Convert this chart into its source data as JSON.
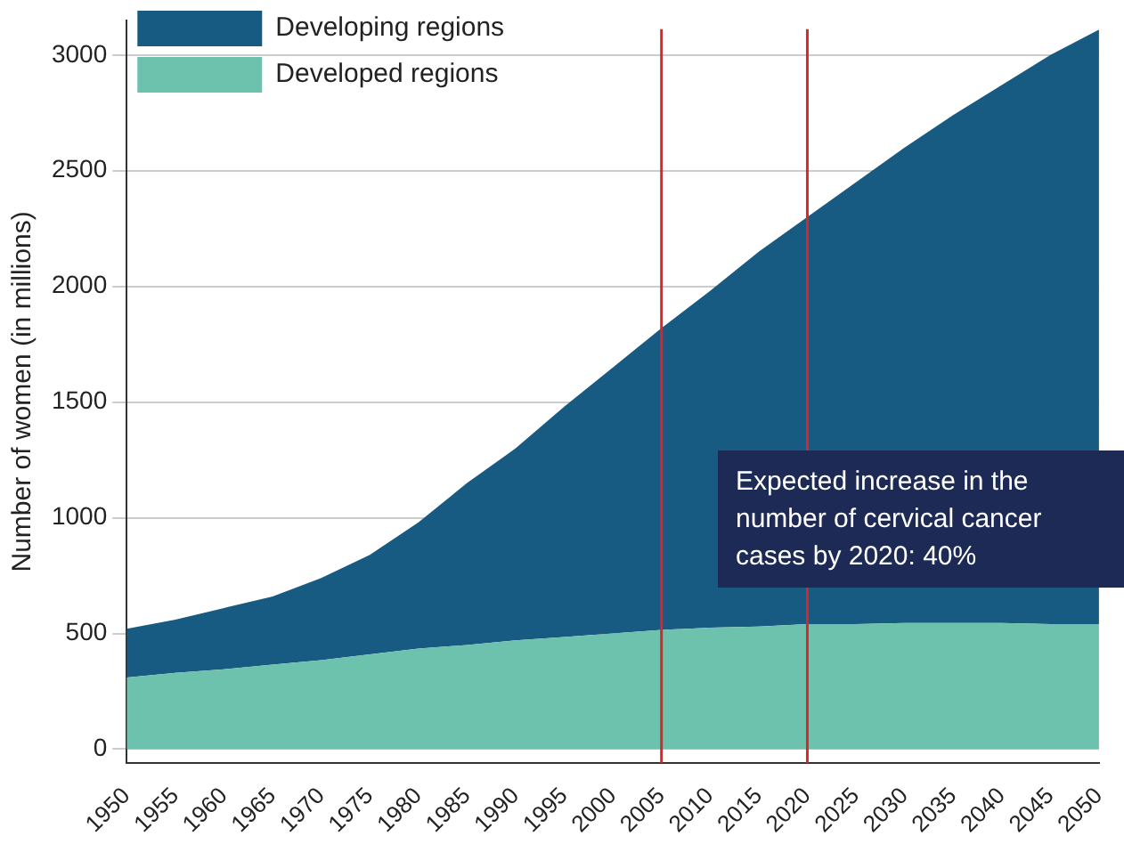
{
  "chart_data": {
    "type": "area",
    "stacked": true,
    "ylabel": "Number of women (in millions)",
    "x": [
      1950,
      1955,
      1960,
      1965,
      1970,
      1975,
      1980,
      1985,
      1990,
      1995,
      2000,
      2005,
      2010,
      2015,
      2020,
      2025,
      2030,
      2035,
      2040,
      2045,
      2050
    ],
    "series": [
      {
        "name": "Developed regions",
        "color": "#6cc2ad",
        "values": [
          310,
          330,
          345,
          365,
          385,
          410,
          435,
          450,
          470,
          485,
          500,
          515,
          525,
          530,
          540,
          540,
          545,
          545,
          545,
          540,
          540
        ]
      },
      {
        "name": "Developing regions",
        "color": "#175a82",
        "values": [
          210,
          230,
          265,
          295,
          355,
          430,
          545,
          700,
          830,
          995,
          1150,
          1305,
          1455,
          1620,
          1760,
          1910,
          2055,
          2195,
          2325,
          2460,
          2570
        ]
      }
    ],
    "xlim": [
      1950,
      2050
    ],
    "xticks": [
      1950,
      1955,
      1960,
      1965,
      1970,
      1975,
      1980,
      1985,
      1990,
      1995,
      2000,
      2005,
      2010,
      2015,
      2020,
      2025,
      2030,
      2035,
      2040,
      2045,
      2050
    ],
    "ylim": [
      -60,
      3150
    ],
    "yticks": [
      0,
      500,
      1000,
      1500,
      2000,
      2500,
      3000
    ],
    "grid": "y",
    "legend": "top left",
    "ref_lines": [
      {
        "axis": "x",
        "value": 2005,
        "color": "#d9262a"
      },
      {
        "axis": "x",
        "value": 2020,
        "color": "#d9262a"
      }
    ],
    "annotations": [
      "Expected increase in the number of cervical cancer cases by 2020: 40%"
    ]
  }
}
